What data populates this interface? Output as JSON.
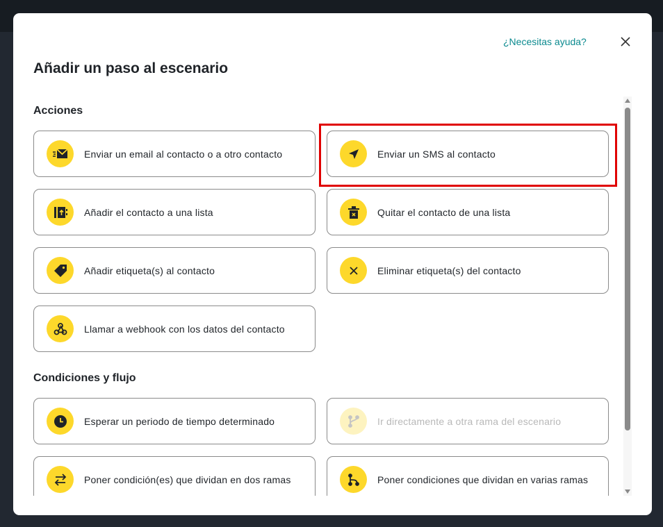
{
  "modal": {
    "title": "Añadir un paso al escenario",
    "help_link": "¿Necesitas ayuda?"
  },
  "sections": [
    {
      "title": "Acciones",
      "items": [
        {
          "label": "Enviar un email al contacto o a otro contacto",
          "icon": "email-send-icon"
        },
        {
          "label": "Enviar un SMS al contacto",
          "icon": "paper-plane-icon"
        },
        {
          "label": "Añadir el contacto a una lista",
          "icon": "list-add-icon"
        },
        {
          "label": "Quitar el contacto de una lista",
          "icon": "list-remove-icon"
        },
        {
          "label": "Añadir etiqueta(s) al contacto",
          "icon": "tag-icon"
        },
        {
          "label": "Eliminar etiqueta(s) del contacto",
          "icon": "x-icon"
        },
        {
          "label": "Llamar a webhook con los datos del contacto",
          "icon": "webhook-icon"
        }
      ]
    },
    {
      "title": "Condiciones y flujo",
      "items": [
        {
          "label": "Esperar un periodo de tiempo determinado",
          "icon": "clock-icon"
        },
        {
          "label": "Ir directamente a otra rama del escenario",
          "icon": "branch-icon",
          "disabled": true
        },
        {
          "label": "Poner condición(es) que dividan en dos ramas",
          "icon": "swap-arrows-icon"
        },
        {
          "label": "Poner condiciones que dividan en varias ramas",
          "icon": "split-icon"
        }
      ]
    }
  ],
  "colors": {
    "accent": "#fdd82b",
    "link": "#0b8a8f",
    "highlight": "#e00000"
  }
}
